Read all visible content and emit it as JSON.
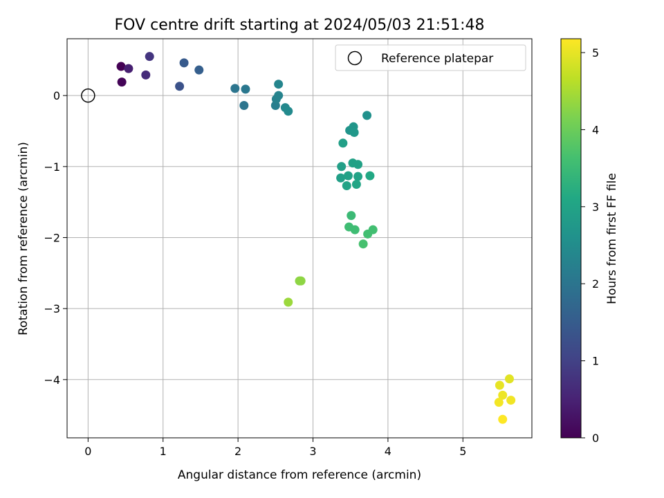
{
  "chart_data": {
    "type": "scatter",
    "title": "FOV centre drift starting at 2024/05/03 21:51:48",
    "xlabel": "Angular distance from reference (arcmin)",
    "ylabel": "Rotation from reference (arcmin)",
    "xlim": [
      -0.28,
      5.92
    ],
    "ylim": [
      -4.82,
      0.8
    ],
    "xticks": [
      0,
      1,
      2,
      3,
      4,
      5
    ],
    "yticks": [
      0,
      -1,
      -2,
      -3,
      -4
    ],
    "xtick_labels": [
      "0",
      "1",
      "2",
      "3",
      "4",
      "5"
    ],
    "ytick_labels": [
      "0",
      "−1",
      "−2",
      "−3",
      "−4"
    ],
    "grid": true,
    "legend": {
      "position": "top-right",
      "label": "Reference platepar"
    },
    "colorbar": {
      "label": "Hours from first FF file",
      "colormap": "viridis",
      "range": [
        0,
        5.18
      ],
      "ticks": [
        0,
        1,
        2,
        3,
        4,
        5
      ],
      "tick_labels": [
        "0",
        "1",
        "2",
        "3",
        "4",
        "5"
      ]
    },
    "reference_point": {
      "x": 0,
      "y": 0
    },
    "points": [
      {
        "x": 0.44,
        "y": 0.41,
        "hours": 0.0
      },
      {
        "x": 0.45,
        "y": 0.19,
        "hours": 0.05
      },
      {
        "x": 0.54,
        "y": 0.38,
        "hours": 0.45
      },
      {
        "x": 0.77,
        "y": 0.29,
        "hours": 0.65
      },
      {
        "x": 0.82,
        "y": 0.55,
        "hours": 0.8
      },
      {
        "x": 1.22,
        "y": 0.13,
        "hours": 1.3
      },
      {
        "x": 1.28,
        "y": 0.46,
        "hours": 1.45
      },
      {
        "x": 1.48,
        "y": 0.36,
        "hours": 1.55
      },
      {
        "x": 1.96,
        "y": 0.1,
        "hours": 2.0
      },
      {
        "x": 2.08,
        "y": -0.14,
        "hours": 2.0
      },
      {
        "x": 2.1,
        "y": 0.09,
        "hours": 2.05
      },
      {
        "x": 2.5,
        "y": -0.14,
        "hours": 2.2
      },
      {
        "x": 2.51,
        "y": -0.05,
        "hours": 2.25
      },
      {
        "x": 2.54,
        "y": 0.0,
        "hours": 2.3
      },
      {
        "x": 2.54,
        "y": 0.16,
        "hours": 2.35
      },
      {
        "x": 2.63,
        "y": -0.17,
        "hours": 2.4
      },
      {
        "x": 2.67,
        "y": -0.22,
        "hours": 2.45
      },
      {
        "x": 3.72,
        "y": -0.28,
        "hours": 2.6
      },
      {
        "x": 3.49,
        "y": -0.49,
        "hours": 2.65
      },
      {
        "x": 3.54,
        "y": -0.44,
        "hours": 2.7
      },
      {
        "x": 3.55,
        "y": -0.52,
        "hours": 2.75
      },
      {
        "x": 3.4,
        "y": -0.67,
        "hours": 2.9
      },
      {
        "x": 3.38,
        "y": -1.0,
        "hours": 2.9
      },
      {
        "x": 3.53,
        "y": -0.95,
        "hours": 2.95
      },
      {
        "x": 3.6,
        "y": -0.97,
        "hours": 2.95
      },
      {
        "x": 3.37,
        "y": -1.16,
        "hours": 2.9
      },
      {
        "x": 3.47,
        "y": -1.13,
        "hours": 2.95
      },
      {
        "x": 3.45,
        "y": -1.27,
        "hours": 3.0
      },
      {
        "x": 3.58,
        "y": -1.25,
        "hours": 3.05
      },
      {
        "x": 3.6,
        "y": -1.14,
        "hours": 3.0
      },
      {
        "x": 3.76,
        "y": -1.13,
        "hours": 3.1
      },
      {
        "x": 3.51,
        "y": -1.69,
        "hours": 3.5
      },
      {
        "x": 3.48,
        "y": -1.85,
        "hours": 3.55
      },
      {
        "x": 3.56,
        "y": -1.89,
        "hours": 3.55
      },
      {
        "x": 3.73,
        "y": -1.95,
        "hours": 3.6
      },
      {
        "x": 3.8,
        "y": -1.89,
        "hours": 3.6
      },
      {
        "x": 3.67,
        "y": -2.09,
        "hours": 3.65
      },
      {
        "x": 2.84,
        "y": -2.61,
        "hours": 4.3
      },
      {
        "x": 2.82,
        "y": -2.61,
        "hours": 4.3
      },
      {
        "x": 2.67,
        "y": -2.91,
        "hours": 4.4
      },
      {
        "x": 5.62,
        "y": -3.99,
        "hours": 4.95
      },
      {
        "x": 5.49,
        "y": -4.08,
        "hours": 5.0
      },
      {
        "x": 5.53,
        "y": -4.22,
        "hours": 5.05
      },
      {
        "x": 5.64,
        "y": -4.29,
        "hours": 5.08
      },
      {
        "x": 5.48,
        "y": -4.32,
        "hours": 5.1
      },
      {
        "x": 5.53,
        "y": -4.56,
        "hours": 5.18
      }
    ]
  }
}
